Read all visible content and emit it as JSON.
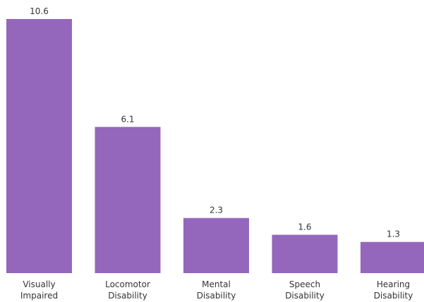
{
  "chart_data": {
    "type": "bar",
    "categories": [
      [
        "Visually",
        "Impaired"
      ],
      [
        "Locomotor",
        "Disability"
      ],
      [
        "Mental",
        "Disability"
      ],
      [
        "Speech",
        "Disability"
      ],
      [
        "Hearing",
        "Disability"
      ]
    ],
    "values": [
      10.6,
      6.1,
      2.3,
      1.6,
      1.3
    ],
    "value_labels": [
      "10.6",
      "6.1",
      "2.3",
      "1.6",
      "1.3"
    ],
    "title": "",
    "xlabel": "",
    "ylabel": "",
    "ylim": [
      0,
      10.6
    ],
    "grid": false,
    "legend": "none",
    "bar_color": "#9467bd"
  }
}
